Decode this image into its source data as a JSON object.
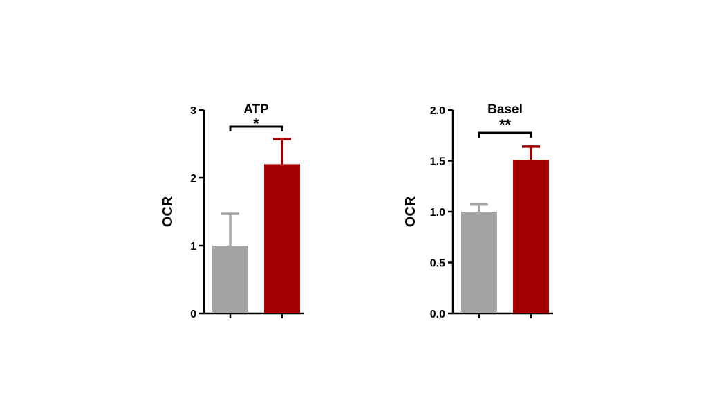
{
  "chart_data": [
    {
      "type": "bar",
      "title": "ATP",
      "ylabel": "OCR",
      "xlabel": "",
      "categories": [
        "",
        ""
      ],
      "values": [
        1.0,
        2.2
      ],
      "errors": [
        0.47,
        0.37
      ],
      "colors": [
        "#a4a4a6",
        "#a20000"
      ],
      "ylim": [
        0,
        3
      ],
      "yticks": [
        0,
        1,
        2,
        3
      ],
      "ytick_labels": [
        "0",
        "1",
        "2",
        "3"
      ],
      "significance": "*"
    },
    {
      "type": "bar",
      "title": "Basel",
      "ylabel": "OCR",
      "xlabel": "",
      "categories": [
        "",
        ""
      ],
      "values": [
        1.0,
        1.51
      ],
      "errors": [
        0.07,
        0.13
      ],
      "colors": [
        "#a4a4a6",
        "#a20000"
      ],
      "ylim": [
        0,
        2.0
      ],
      "yticks": [
        0,
        0.5,
        1.0,
        1.5,
        2.0
      ],
      "ytick_labels": [
        "0.0",
        "0.5",
        "1.0",
        "1.5",
        "2.0"
      ],
      "significance": "**"
    }
  ]
}
